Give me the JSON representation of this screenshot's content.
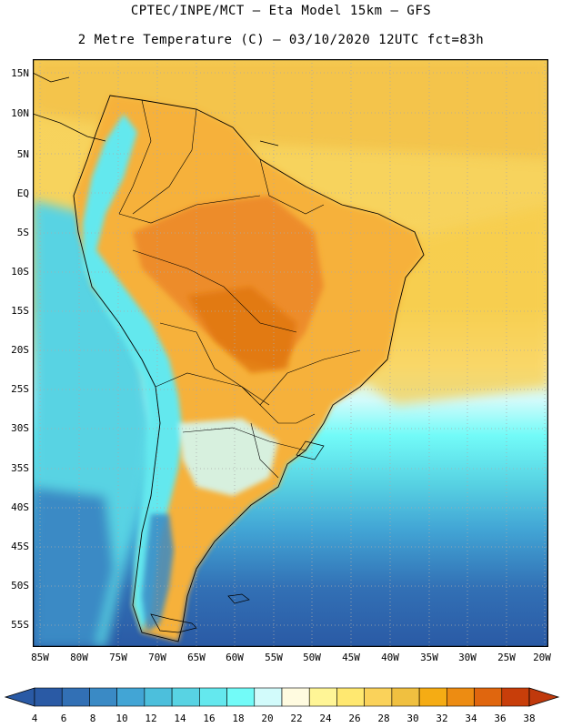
{
  "header": {
    "title_line1": "CPTEC/INPE/MCT –  Eta Model 15km – GFS",
    "title_line2": "2 Metre Temperature (C) – 03/10/2020 12UTC fct=83h"
  },
  "map": {
    "lat_labels": [
      "15N",
      "10N",
      "5N",
      "EQ",
      "5S",
      "10S",
      "15S",
      "20S",
      "25S",
      "30S",
      "35S",
      "40S",
      "45S",
      "50S",
      "55S"
    ],
    "lon_labels": [
      "85W",
      "80W",
      "75W",
      "70W",
      "65W",
      "60W",
      "55W",
      "50W",
      "45W",
      "40W",
      "35W",
      "30W",
      "25W",
      "20W"
    ]
  },
  "colorbar": {
    "ticks": [
      "4",
      "6",
      "8",
      "10",
      "12",
      "14",
      "16",
      "18",
      "20",
      "22",
      "24",
      "26",
      "28",
      "30",
      "32",
      "34",
      "36",
      "38"
    ],
    "colors": [
      "#2a5aa5",
      "#3270b5",
      "#3a8ac5",
      "#42a5d5",
      "#4cbfdc",
      "#58d3e3",
      "#64e8ee",
      "#72fbf8",
      "#d2fbfb",
      "#fffbe0",
      "#fff596",
      "#ffe870",
      "#fad25a",
      "#f0c040",
      "#f5ac14",
      "#ed8c12",
      "#e0660e",
      "#c83e0a",
      "#c0390c"
    ]
  }
}
